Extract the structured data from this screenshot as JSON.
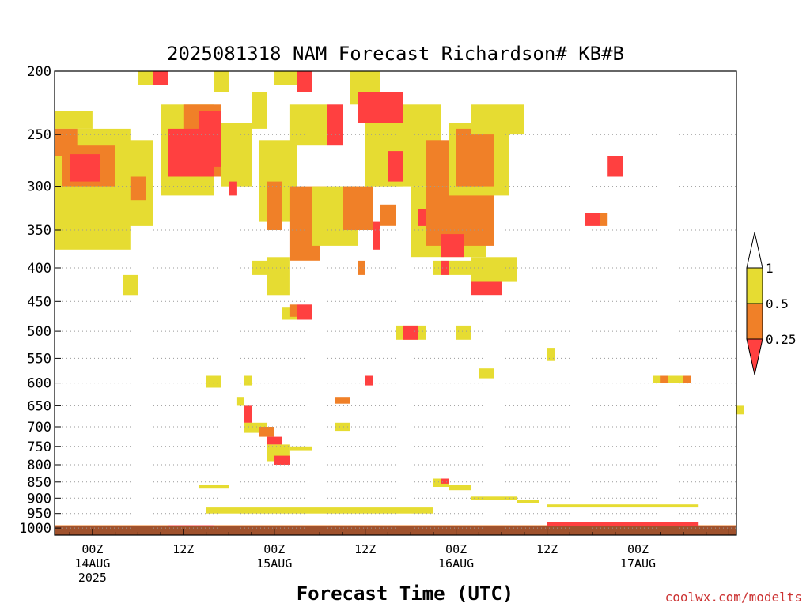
{
  "credit": "coolwx.com/modelts",
  "colors": {
    "lt025": "#ff4040",
    "b025_05": "#f08028",
    "b05_1": "#e6dc32",
    "gt1": "#ffffff",
    "ground": "#a0522d"
  },
  "chart_data": {
    "type": "heatmap",
    "title": "2025081318 NAM Forecast Richardson# KB#B",
    "xlabel": "Forecast Time (UTC)",
    "ylabel": "",
    "x_range_hours": [
      -5,
      85
    ],
    "y_range_hpa": [
      200,
      1025
    ],
    "y_scale": "log-pressure (inverted)",
    "grid": "dotted horizontal at labelled levels",
    "y_ticks": [
      200,
      250,
      300,
      350,
      400,
      450,
      500,
      550,
      600,
      650,
      700,
      750,
      800,
      850,
      900,
      950,
      1000
    ],
    "x_ticks": [
      {
        "hour": 0,
        "lines": [
          "00Z",
          "14AUG",
          "2025"
        ]
      },
      {
        "hour": 12,
        "lines": [
          "12Z"
        ]
      },
      {
        "hour": 24,
        "lines": [
          "00Z",
          "15AUG"
        ]
      },
      {
        "hour": 36,
        "lines": [
          "12Z"
        ]
      },
      {
        "hour": 48,
        "lines": [
          "00Z",
          "16AUG"
        ]
      },
      {
        "hour": 60,
        "lines": [
          "12Z"
        ]
      },
      {
        "hour": 72,
        "lines": [
          "00Z",
          "17AUG"
        ]
      }
    ],
    "legend": {
      "placement": "right",
      "labels": [
        "1",
        "0.5",
        "0.25"
      ],
      "levels": [
        0.25,
        0.5,
        1
      ]
    },
    "classes": [
      {
        "name": "lt025",
        "range": "< 0.25"
      },
      {
        "name": "b025_05",
        "range": "0.25 - 0.5"
      },
      {
        "name": "b05_1",
        "range": "0.5 - 1"
      }
    ],
    "regions": [
      {
        "c": "b05_1",
        "h": [
          -5,
          0
        ],
        "p": [
          230,
          245
        ]
      },
      {
        "c": "b05_1",
        "h": [
          -5,
          5
        ],
        "p": [
          245,
          375
        ]
      },
      {
        "c": "b025_05",
        "h": [
          -5,
          -2
        ],
        "p": [
          245,
          270
        ]
      },
      {
        "c": "lt025",
        "h": [
          -4,
          0
        ],
        "p": [
          265,
          290
        ]
      },
      {
        "c": "b025_05",
        "h": [
          -4,
          4
        ],
        "p": [
          260,
          300
        ]
      },
      {
        "c": "lt025",
        "h": [
          -3,
          1
        ],
        "p": [
          268,
          295
        ]
      },
      {
        "c": "b05_1",
        "h": [
          3,
          8
        ],
        "p": [
          255,
          345
        ]
      },
      {
        "c": "b025_05",
        "h": [
          5,
          7
        ],
        "p": [
          290,
          315
        ]
      },
      {
        "c": "b05_1",
        "h": [
          6,
          9
        ],
        "p": [
          200,
          210
        ]
      },
      {
        "c": "lt025",
        "h": [
          8,
          10
        ],
        "p": [
          200,
          210
        ]
      },
      {
        "c": "b05_1",
        "h": [
          9,
          16
        ],
        "p": [
          225,
          310
        ]
      },
      {
        "c": "b025_05",
        "h": [
          12,
          17
        ],
        "p": [
          225,
          290
        ]
      },
      {
        "c": "lt025",
        "h": [
          10,
          16
        ],
        "p": [
          245,
          290
        ]
      },
      {
        "c": "lt025",
        "h": [
          14,
          17
        ],
        "p": [
          230,
          280
        ]
      },
      {
        "c": "b05_1",
        "h": [
          16,
          18
        ],
        "p": [
          200,
          215
        ]
      },
      {
        "c": "b05_1",
        "h": [
          17,
          21
        ],
        "p": [
          240,
          300
        ]
      },
      {
        "c": "lt025",
        "h": [
          18,
          19
        ],
        "p": [
          295,
          310
        ]
      },
      {
        "c": "b05_1",
        "h": [
          21,
          23
        ],
        "p": [
          215,
          245
        ]
      },
      {
        "c": "b05_1",
        "h": [
          22,
          27
        ],
        "p": [
          255,
          340
        ]
      },
      {
        "c": "b025_05",
        "h": [
          23,
          25
        ],
        "p": [
          295,
          350
        ]
      },
      {
        "c": "b05_1",
        "h": [
          24,
          28
        ],
        "p": [
          200,
          210
        ]
      },
      {
        "c": "lt025",
        "h": [
          27,
          29
        ],
        "p": [
          200,
          215
        ]
      },
      {
        "c": "b05_1",
        "h": [
          26,
          31
        ],
        "p": [
          225,
          260
        ]
      },
      {
        "c": "b025_05",
        "h": [
          26,
          30
        ],
        "p": [
          300,
          390
        ]
      },
      {
        "c": "lt025",
        "h": [
          29,
          31
        ],
        "p": [
          300,
          330
        ]
      },
      {
        "c": "b05_1",
        "h": [
          29,
          35
        ],
        "p": [
          300,
          370
        ]
      },
      {
        "c": "lt025",
        "h": [
          31,
          33
        ],
        "p": [
          225,
          260
        ]
      },
      {
        "c": "b025_05",
        "h": [
          33,
          37
        ],
        "p": [
          300,
          350
        ]
      },
      {
        "c": "b05_1",
        "h": [
          34,
          38
        ],
        "p": [
          200,
          225
        ]
      },
      {
        "c": "lt025",
        "h": [
          35,
          41
        ],
        "p": [
          215,
          240
        ]
      },
      {
        "c": "b05_1",
        "h": [
          36,
          41
        ],
        "p": [
          240,
          300
        ]
      },
      {
        "c": "lt025",
        "h": [
          39,
          42
        ],
        "p": [
          265,
          295
        ]
      },
      {
        "c": "lt025",
        "h": [
          37,
          38
        ],
        "p": [
          340,
          375
        ]
      },
      {
        "c": "b025_05",
        "h": [
          38,
          40
        ],
        "p": [
          320,
          345
        ]
      },
      {
        "c": "b05_1",
        "h": [
          41,
          46
        ],
        "p": [
          225,
          300
        ]
      },
      {
        "c": "b05_1",
        "h": [
          42,
          52
        ],
        "p": [
          300,
          385
        ]
      },
      {
        "c": "lt025",
        "h": [
          43,
          44
        ],
        "p": [
          325,
          345
        ]
      },
      {
        "c": "b025_05",
        "h": [
          44,
          48
        ],
        "p": [
          255,
          300
        ]
      },
      {
        "c": "b025_05",
        "h": [
          44,
          53
        ],
        "p": [
          300,
          370
        ]
      },
      {
        "c": "lt025",
        "h": [
          46,
          49
        ],
        "p": [
          355,
          385
        ]
      },
      {
        "c": "b05_1",
        "h": [
          47,
          55
        ],
        "p": [
          240,
          310
        ]
      },
      {
        "c": "b025_05",
        "h": [
          48,
          53
        ],
        "p": [
          245,
          300
        ]
      },
      {
        "c": "b05_1",
        "h": [
          50,
          57
        ],
        "p": [
          225,
          250
        ]
      },
      {
        "c": "b05_1",
        "h": [
          45,
          50
        ],
        "p": [
          390,
          410
        ]
      },
      {
        "c": "lt025",
        "h": [
          46,
          47
        ],
        "p": [
          390,
          410
        ]
      },
      {
        "c": "b05_1",
        "h": [
          50,
          56
        ],
        "p": [
          385,
          420
        ]
      },
      {
        "c": "lt025",
        "h": [
          50,
          54
        ],
        "p": [
          420,
          440
        ]
      },
      {
        "c": "lt025",
        "h": [
          68,
          70
        ],
        "p": [
          270,
          290
        ]
      },
      {
        "c": "lt025",
        "h": [
          65,
          67
        ],
        "p": [
          330,
          345
        ]
      },
      {
        "c": "b025_05",
        "h": [
          67,
          68
        ],
        "p": [
          330,
          345
        ]
      },
      {
        "c": "b05_1",
        "h": [
          23,
          26
        ],
        "p": [
          385,
          440
        ]
      },
      {
        "c": "b05_1",
        "h": [
          25,
          27
        ],
        "p": [
          460,
          480
        ]
      },
      {
        "c": "b025_05",
        "h": [
          26,
          27
        ],
        "p": [
          455,
          475
        ]
      },
      {
        "c": "lt025",
        "h": [
          27,
          29
        ],
        "p": [
          455,
          480
        ]
      },
      {
        "c": "b05_1",
        "h": [
          21,
          23
        ],
        "p": [
          390,
          410
        ]
      },
      {
        "c": "b025_05",
        "h": [
          35,
          36
        ],
        "p": [
          390,
          410
        ]
      },
      {
        "c": "b05_1",
        "h": [
          4,
          6
        ],
        "p": [
          410,
          440
        ]
      },
      {
        "c": "b05_1",
        "h": [
          40,
          44
        ],
        "p": [
          490,
          515
        ]
      },
      {
        "c": "lt025",
        "h": [
          41,
          43
        ],
        "p": [
          490,
          515
        ]
      },
      {
        "c": "b05_1",
        "h": [
          48,
          50
        ],
        "p": [
          490,
          515
        ]
      },
      {
        "c": "b05_1",
        "h": [
          60,
          61
        ],
        "p": [
          530,
          555
        ]
      },
      {
        "c": "b05_1",
        "h": [
          51,
          53
        ],
        "p": [
          570,
          590
        ]
      },
      {
        "c": "b05_1",
        "h": [
          15,
          17
        ],
        "p": [
          585,
          610
        ]
      },
      {
        "c": "b05_1",
        "h": [
          20,
          21
        ],
        "p": [
          585,
          605
        ]
      },
      {
        "c": "lt025",
        "h": [
          36,
          37
        ],
        "p": [
          585,
          605
        ]
      },
      {
        "c": "b025_05",
        "h": [
          32,
          34
        ],
        "p": [
          630,
          645
        ]
      },
      {
        "c": "b05_1",
        "h": [
          19,
          20
        ],
        "p": [
          630,
          650
        ]
      },
      {
        "c": "lt025",
        "h": [
          20,
          21
        ],
        "p": [
          650,
          690
        ]
      },
      {
        "c": "b05_1",
        "h": [
          20,
          23
        ],
        "p": [
          690,
          715
        ]
      },
      {
        "c": "b025_05",
        "h": [
          22,
          24
        ],
        "p": [
          700,
          725
        ]
      },
      {
        "c": "lt025",
        "h": [
          23,
          25
        ],
        "p": [
          725,
          745
        ]
      },
      {
        "c": "b05_1",
        "h": [
          23,
          26
        ],
        "p": [
          745,
          790
        ]
      },
      {
        "c": "lt025",
        "h": [
          24,
          26
        ],
        "p": [
          775,
          800
        ]
      },
      {
        "c": "b05_1",
        "h": [
          26,
          29
        ],
        "p": [
          750,
          760
        ]
      },
      {
        "c": "b05_1",
        "h": [
          32,
          34
        ],
        "p": [
          690,
          710
        ]
      },
      {
        "c": "b05_1",
        "h": [
          74,
          79
        ],
        "p": [
          585,
          600
        ]
      },
      {
        "c": "b025_05",
        "h": [
          75,
          76
        ],
        "p": [
          585,
          600
        ]
      },
      {
        "c": "b025_05",
        "h": [
          78,
          79
        ],
        "p": [
          585,
          600
        ]
      },
      {
        "c": "b05_1",
        "h": [
          85,
          86
        ],
        "p": [
          650,
          670
        ]
      },
      {
        "c": "b05_1",
        "h": [
          45,
          47
        ],
        "p": [
          840,
          865
        ]
      },
      {
        "c": "lt025",
        "h": [
          46,
          47
        ],
        "p": [
          840,
          855
        ]
      },
      {
        "c": "b05_1",
        "h": [
          47,
          50
        ],
        "p": [
          860,
          875
        ]
      },
      {
        "c": "b05_1",
        "h": [
          50,
          56
        ],
        "p": [
          895,
          905
        ]
      },
      {
        "c": "b05_1",
        "h": [
          14,
          18
        ],
        "p": [
          860,
          870
        ]
      },
      {
        "c": "b05_1",
        "h": [
          56,
          59
        ],
        "p": [
          905,
          915
        ]
      },
      {
        "c": "b025_05",
        "h": [
          -5,
          85
        ],
        "p": [
          990,
          1000
        ]
      },
      {
        "c": "lt025",
        "h": [
          10,
          16
        ],
        "p": [
          990,
          1000
        ]
      },
      {
        "c": "lt025",
        "h": [
          60,
          80
        ],
        "p": [
          980,
          1000
        ]
      },
      {
        "c": "b05_1",
        "h": [
          60,
          80
        ],
        "p": [
          920,
          930
        ]
      },
      {
        "c": "b05_1",
        "h": [
          15,
          45
        ],
        "p": [
          930,
          950
        ]
      }
    ]
  }
}
